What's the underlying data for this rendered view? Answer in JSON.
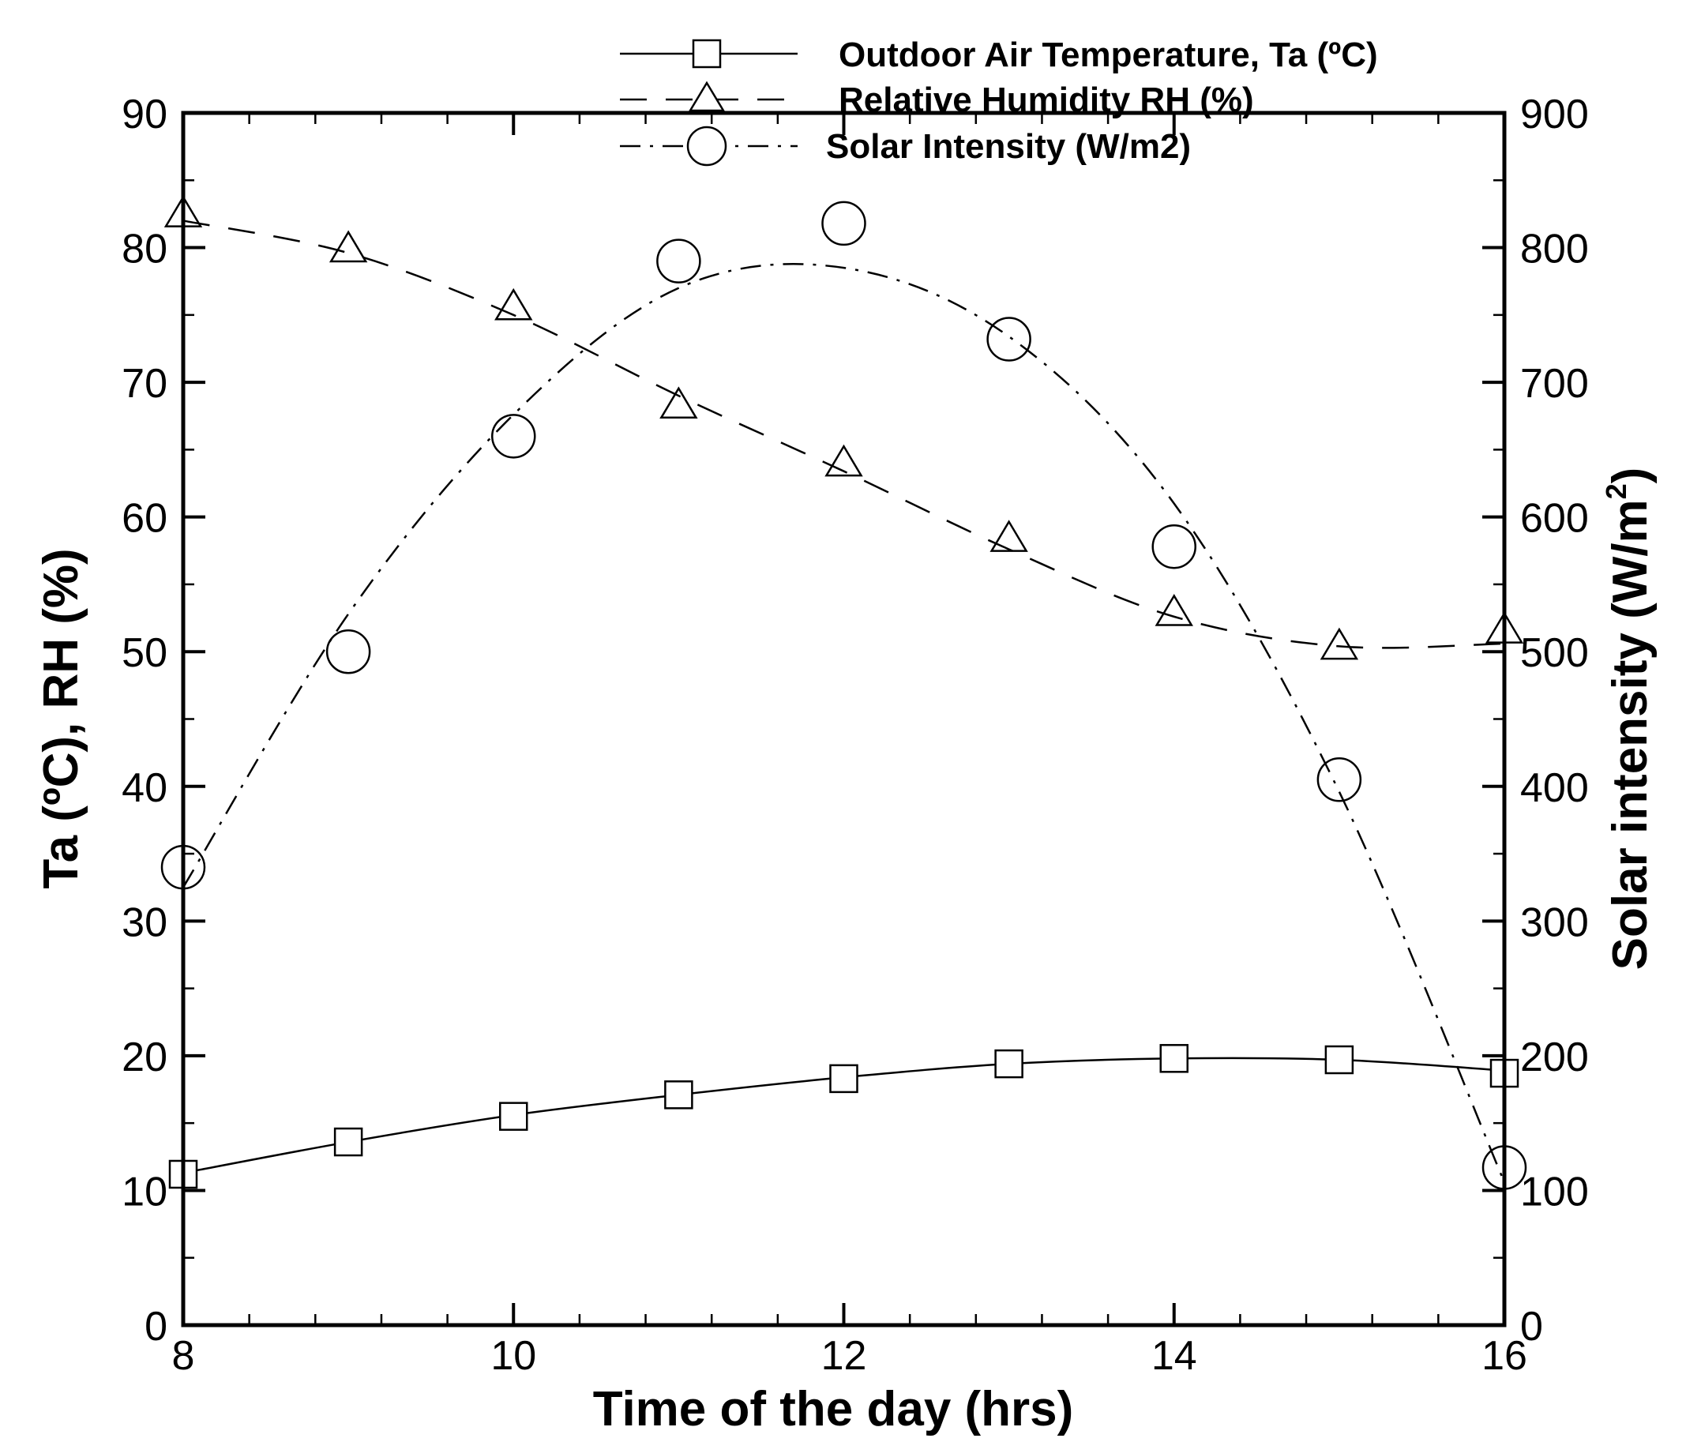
{
  "chart_data": {
    "type": "line",
    "xlabel": "Time of the day (hrs)",
    "ylabel_left": "Ta (ºC),  RH (%)",
    "ylabel_right_main": "Solar intensity (W/m",
    "ylabel_right_sup": "2",
    "ylabel_right_close": ")",
    "xlim": [
      8,
      16
    ],
    "ylim_left": [
      0,
      90
    ],
    "ylim_right": [
      0,
      900
    ],
    "x_ticks": [
      8,
      10,
      12,
      14,
      16
    ],
    "x_tick_labels": [
      "8",
      "10",
      "12",
      "14",
      "16"
    ],
    "y_ticks_left": [
      0,
      10,
      20,
      30,
      40,
      50,
      60,
      70,
      80,
      90
    ],
    "y_tick_labels_left": [
      "0",
      "10",
      "20",
      "30",
      "40",
      "50",
      "60",
      "70",
      "80",
      "90"
    ],
    "y_ticks_right": [
      0,
      100,
      200,
      300,
      400,
      500,
      600,
      700,
      800,
      900
    ],
    "y_tick_labels_right": [
      "0",
      "100",
      "200",
      "300",
      "400",
      "500",
      "600",
      "700",
      "800",
      "900"
    ],
    "x": [
      8,
      9,
      10,
      11,
      12,
      13,
      14,
      15,
      16
    ],
    "series": [
      {
        "name": "Outdoor Air Temperature, Ta (ºC)",
        "axis": "left",
        "marker": "square",
        "line_style": "solid",
        "values": [
          11.2,
          13.6,
          15.5,
          17.1,
          18.3,
          19.4,
          19.8,
          19.7,
          18.7
        ],
        "fit": [
          11.3,
          13.6,
          15.6,
          17.1,
          18.4,
          19.4,
          19.8,
          19.7,
          18.9
        ]
      },
      {
        "name": "Relative Humidity RH (%)",
        "axis": "left",
        "marker": "triangle",
        "line_style": "dashed",
        "values": [
          82.4,
          79.8,
          75.5,
          68.2,
          63.9,
          58.3,
          52.8,
          50.3,
          51.5
        ],
        "fit": [
          82.0,
          79.6,
          75.0,
          69.0,
          63.4,
          57.6,
          52.6,
          50.4,
          50.6
        ]
      },
      {
        "name": "Solar Intensity (W/m2)",
        "axis": "right",
        "marker": "circle",
        "line_style": "dashdot",
        "values": [
          340,
          500,
          660,
          790,
          818,
          732,
          578,
          405,
          117
        ],
        "fit": [
          325,
          528,
          676,
          770,
          785,
          734,
          610,
          396,
          106
        ]
      }
    ],
    "legend_position": "top"
  }
}
